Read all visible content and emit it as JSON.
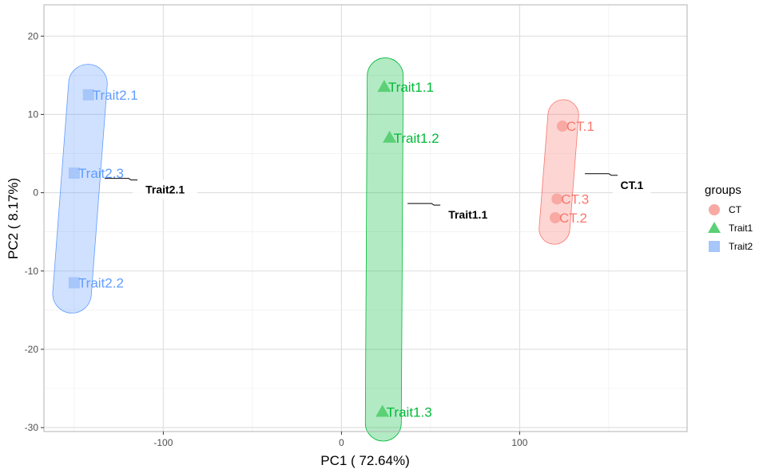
{
  "chart_data": {
    "type": "scatter",
    "xlabel": "PC1 ( 72.64%)",
    "ylabel": "PC2 ( 8.17%)",
    "xlim": [
      -167,
      194
    ],
    "ylim": [
      -30.5,
      24
    ],
    "x_ticks": [
      -100,
      0,
      100
    ],
    "y_ticks": [
      -30,
      -20,
      -10,
      0,
      10,
      20
    ],
    "grid": true,
    "legend_position": "right",
    "legend_title": "groups",
    "series": [
      {
        "name": "CT",
        "shape": "circle",
        "color": "#F8766D",
        "fill": "#F8A9A3",
        "points": [
          {
            "label": "CT.1",
            "x": 124,
            "y": 8.5
          },
          {
            "label": "CT.2",
            "x": 120,
            "y": -3.2
          },
          {
            "label": "CT.3",
            "x": 121,
            "y": -0.8
          }
        ],
        "group_label": {
          "text": "CT.1",
          "x": 163,
          "y": 1.0
        }
      },
      {
        "name": "Trait1",
        "shape": "triangle",
        "color": "#00BA38",
        "fill": "#5BD076",
        "points": [
          {
            "label": "Trait1.1",
            "x": 24,
            "y": 13.5
          },
          {
            "label": "Trait1.2",
            "x": 27,
            "y": 7.0
          },
          {
            "label": "Trait1.3",
            "x": 23,
            "y": -28.0
          }
        ],
        "group_label": {
          "text": "Trait1.1",
          "x": 71,
          "y": -2.8
        }
      },
      {
        "name": "Trait2",
        "shape": "square",
        "color": "#619CFF",
        "fill": "#A7C6FA",
        "points": [
          {
            "label": "Trait2.1",
            "x": -142,
            "y": 12.5
          },
          {
            "label": "Trait2.2",
            "x": -150,
            "y": -11.5
          },
          {
            "label": "Trait2.3",
            "x": -150,
            "y": 2.5
          }
        ],
        "group_label": {
          "text": "Trait2.1",
          "x": -99,
          "y": 0.4
        }
      }
    ]
  }
}
